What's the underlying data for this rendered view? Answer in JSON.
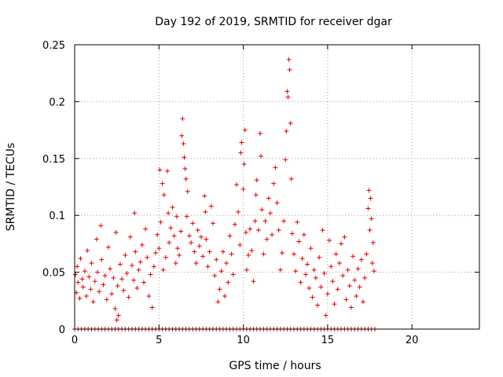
{
  "chart_data": {
    "type": "scatter",
    "title": "Day 192 of 2019, SRMTID for receiver dgar",
    "xlabel": "GPS time / hours",
    "ylabel": "SRMTID / TECUs",
    "xlim": [
      0,
      24
    ],
    "ylim": [
      0,
      0.25
    ],
    "x_ticks": [
      0,
      5,
      10,
      15,
      20
    ],
    "x_tick_labels": [
      "0",
      "5",
      "10",
      "15",
      "20"
    ],
    "y_ticks": [
      0,
      0.05,
      0.1,
      0.15,
      0.2,
      0.25
    ],
    "y_tick_labels": [
      "0",
      "0.05",
      "0.1",
      "0.15",
      "0.2",
      "0.25"
    ],
    "grid": true,
    "marker": "+",
    "series": [
      {
        "name": "SRMTID",
        "color": "#e00000",
        "points": [
          [
            0.05,
            0.048
          ],
          [
            0.1,
            0.032
          ],
          [
            0.15,
            0.055
          ],
          [
            0.2,
            0.041
          ],
          [
            0.3,
            0.027
          ],
          [
            0.35,
            0.062
          ],
          [
            0.45,
            0.044
          ],
          [
            0.5,
            0.037
          ],
          [
            0.6,
            0.051
          ],
          [
            0.7,
            0.029
          ],
          [
            0.75,
            0.069
          ],
          [
            0.85,
            0.046
          ],
          [
            0.95,
            0.035
          ],
          [
            1.0,
            0.058
          ],
          [
            1.1,
            0.024
          ],
          [
            1.2,
            0.042
          ],
          [
            1.3,
            0.079
          ],
          [
            1.35,
            0.05
          ],
          [
            1.45,
            0.033
          ],
          [
            1.55,
            0.091
          ],
          [
            1.6,
            0.061
          ],
          [
            1.7,
            0.039
          ],
          [
            1.8,
            0.047
          ],
          [
            1.9,
            0.026
          ],
          [
            2.0,
            0.072
          ],
          [
            2.1,
            0.053
          ],
          [
            2.2,
            0.031
          ],
          [
            2.3,
            0.045
          ],
          [
            2.4,
            0.018
          ],
          [
            2.45,
            0.085
          ],
          [
            2.5,
            0.008
          ],
          [
            2.55,
            0.038
          ],
          [
            2.6,
            0.012
          ],
          [
            2.7,
            0.057
          ],
          [
            2.8,
            0.044
          ],
          [
            2.9,
            0.034
          ],
          [
            3.0,
            0.065
          ],
          [
            3.1,
            0.049
          ],
          [
            3.2,
            0.028
          ],
          [
            3.3,
            0.081
          ],
          [
            3.4,
            0.056
          ],
          [
            3.5,
            0.043
          ],
          [
            3.55,
            0.102
          ],
          [
            3.6,
            0.068
          ],
          [
            3.7,
            0.036
          ],
          [
            3.8,
            0.052
          ],
          [
            3.9,
            0.059
          ],
          [
            4.0,
            0.074
          ],
          [
            4.1,
            0.041
          ],
          [
            4.2,
            0.088
          ],
          [
            4.3,
            0.063
          ],
          [
            4.4,
            0.029
          ],
          [
            4.5,
            0.048
          ],
          [
            4.6,
            0.019
          ],
          [
            4.7,
            0.055
          ],
          [
            4.8,
            0.067
          ],
          [
            4.9,
            0.083
          ],
          [
            5.0,
            0.071
          ],
          [
            5.05,
            0.14
          ],
          [
            5.1,
            0.094
          ],
          [
            5.2,
            0.128
          ],
          [
            5.25,
            0.052
          ],
          [
            5.3,
            0.118
          ],
          [
            5.4,
            0.063
          ],
          [
            5.5,
            0.139
          ],
          [
            5.55,
            0.102
          ],
          [
            5.6,
            0.076
          ],
          [
            5.7,
            0.089
          ],
          [
            5.8,
            0.107
          ],
          [
            5.9,
            0.082
          ],
          [
            6.0,
            0.058
          ],
          [
            6.05,
            0.099
          ],
          [
            6.1,
            0.071
          ],
          [
            6.2,
            0.065
          ],
          [
            6.3,
            0.086
          ],
          [
            6.35,
            0.17
          ],
          [
            6.4,
            0.185
          ],
          [
            6.45,
            0.163
          ],
          [
            6.5,
            0.151
          ],
          [
            6.55,
            0.141
          ],
          [
            6.6,
            0.132
          ],
          [
            6.65,
            0.099
          ],
          [
            6.7,
            0.121
          ],
          [
            6.8,
            0.082
          ],
          [
            6.9,
            0.076
          ],
          [
            7.0,
            0.093
          ],
          [
            7.1,
            0.068
          ],
          [
            7.2,
            0.058
          ],
          [
            7.3,
            0.087
          ],
          [
            7.4,
            0.073
          ],
          [
            7.5,
            0.081
          ],
          [
            7.6,
            0.064
          ],
          [
            7.7,
            0.117
          ],
          [
            7.75,
            0.103
          ],
          [
            7.8,
            0.079
          ],
          [
            7.9,
            0.055
          ],
          [
            8.0,
            0.068
          ],
          [
            8.1,
            0.108
          ],
          [
            8.2,
            0.093
          ],
          [
            8.3,
            0.047
          ],
          [
            8.4,
            0.061
          ],
          [
            8.5,
            0.024
          ],
          [
            8.6,
            0.035
          ],
          [
            8.7,
            0.051
          ],
          [
            8.8,
            0.068
          ],
          [
            8.9,
            0.029
          ],
          [
            9.0,
            0.058
          ],
          [
            9.1,
            0.041
          ],
          [
            9.2,
            0.082
          ],
          [
            9.3,
            0.066
          ],
          [
            9.4,
            0.048
          ],
          [
            9.5,
            0.092
          ],
          [
            9.6,
            0.127
          ],
          [
            9.7,
            0.103
          ],
          [
            9.8,
            0.074
          ],
          [
            9.85,
            0.155
          ],
          [
            9.9,
            0.164
          ],
          [
            10.0,
            0.123
          ],
          [
            10.05,
            0.145
          ],
          [
            10.1,
            0.175
          ],
          [
            10.15,
            0.085
          ],
          [
            10.2,
            0.052
          ],
          [
            10.3,
            0.065
          ],
          [
            10.4,
            0.088
          ],
          [
            10.5,
            0.069
          ],
          [
            10.6,
            0.042
          ],
          [
            10.7,
            0.095
          ],
          [
            10.75,
            0.118
          ],
          [
            10.8,
            0.131
          ],
          [
            10.9,
            0.087
          ],
          [
            11.0,
            0.172
          ],
          [
            11.05,
            0.152
          ],
          [
            11.1,
            0.105
          ],
          [
            11.2,
            0.066
          ],
          [
            11.3,
            0.095
          ],
          [
            11.4,
            0.079
          ],
          [
            11.5,
            0.115
          ],
          [
            11.6,
            0.102
          ],
          [
            11.7,
            0.083
          ],
          [
            11.8,
            0.128
          ],
          [
            11.9,
            0.142
          ],
          [
            12.0,
            0.111
          ],
          [
            12.1,
            0.087
          ],
          [
            12.2,
            0.052
          ],
          [
            12.3,
            0.067
          ],
          [
            12.4,
            0.095
          ],
          [
            12.5,
            0.149
          ],
          [
            12.55,
            0.174
          ],
          [
            12.6,
            0.209
          ],
          [
            12.65,
            0.204
          ],
          [
            12.7,
            0.237
          ],
          [
            12.75,
            0.228
          ],
          [
            12.8,
            0.181
          ],
          [
            12.85,
            0.132
          ],
          [
            12.9,
            0.084
          ],
          [
            13.0,
            0.066
          ],
          [
            13.1,
            0.051
          ],
          [
            13.2,
            0.094
          ],
          [
            13.3,
            0.077
          ],
          [
            13.4,
            0.041
          ],
          [
            13.5,
            0.062
          ],
          [
            13.6,
            0.083
          ],
          [
            13.7,
            0.048
          ],
          [
            13.8,
            0.057
          ],
          [
            13.9,
            0.036
          ],
          [
            14.0,
            0.071
          ],
          [
            14.1,
            0.028
          ],
          [
            14.2,
            0.052
          ],
          [
            14.3,
            0.045
          ],
          [
            14.4,
            0.021
          ],
          [
            14.5,
            0.063
          ],
          [
            14.6,
            0.037
          ],
          [
            14.7,
            0.087
          ],
          [
            14.8,
            0.049
          ],
          [
            14.9,
            0.012
          ],
          [
            15.0,
            0.031
          ],
          [
            15.1,
            0.078
          ],
          [
            15.2,
            0.055
          ],
          [
            15.3,
            0.042
          ],
          [
            15.4,
            0.022
          ],
          [
            15.5,
            0.066
          ],
          [
            15.6,
            0.035
          ],
          [
            15.7,
            0.058
          ],
          [
            15.8,
            0.075
          ],
          [
            15.9,
            0.047
          ],
          [
            16.0,
            0.081
          ],
          [
            16.1,
            0.026
          ],
          [
            16.2,
            0.052
          ],
          [
            16.3,
            0.038
          ],
          [
            16.4,
            0.019
          ],
          [
            16.5,
            0.064
          ],
          [
            16.6,
            0.043
          ],
          [
            16.7,
            0.029
          ],
          [
            16.8,
            0.053
          ],
          [
            16.9,
            0.037
          ],
          [
            17.0,
            0.061
          ],
          [
            17.1,
            0.024
          ],
          [
            17.2,
            0.045
          ],
          [
            17.3,
            0.066
          ],
          [
            17.4,
            0.106
          ],
          [
            17.45,
            0.122
          ],
          [
            17.5,
            0.087
          ],
          [
            17.55,
            0.115
          ],
          [
            17.6,
            0.097
          ],
          [
            17.65,
            0.058
          ],
          [
            17.7,
            0.076
          ],
          [
            17.75,
            0.051
          ]
        ]
      }
    ],
    "zero_line_hours": [
      0.0,
      17.8
    ]
  }
}
